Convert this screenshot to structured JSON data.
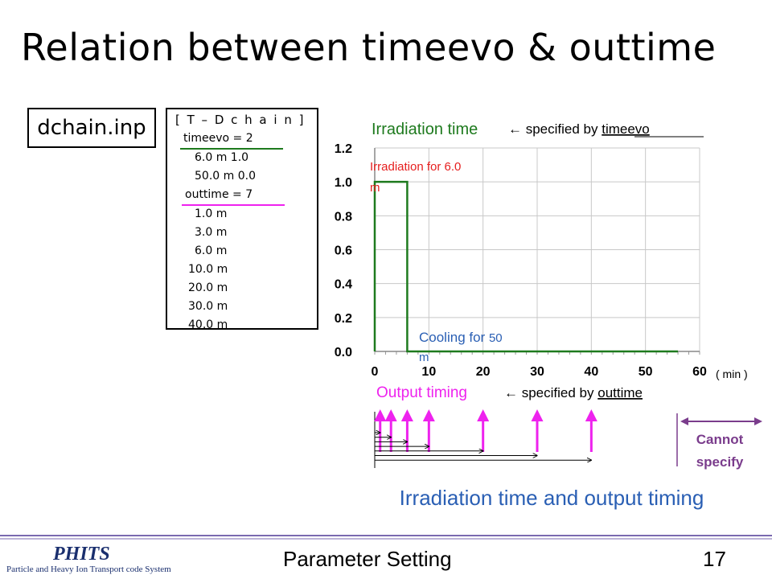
{
  "slide": {
    "title": "Relation between timeevo & outtime",
    "file_label": "dchain.inp",
    "footer_title": "Parameter Setting",
    "page_number": "17",
    "logo_main": "PHITS",
    "logo_sub": "Particle and Heavy Ion Transport code System"
  },
  "input_block": {
    "header": "[ T – D c h a i n ]",
    "lines": [
      "timeevo =    2",
      "6.0 m  1.0",
      "50.0 m 0.0",
      "outtime =    7",
      "1.0 m",
      "3.0 m",
      "6.0 m",
      "10.0 m",
      "20.0 m",
      "30.0 m",
      "40.0 m"
    ]
  },
  "annotations": {
    "irradiation_time": "Irradiation time",
    "specified_by_timeevo_prefix": "← specified by ",
    "timeevo_word": "timeevo",
    "irradiation_for": "Irradiation for 6.0",
    "irradiation_for_unit": "m",
    "cooling_for": "Cooling for ",
    "cooling_value": "50",
    "cooling_unit": "m",
    "min_unit": "( min )",
    "output_timing": "Output timing",
    "specified_by_outtime_prefix": "← specified by ",
    "outtime_word": "outtime",
    "cannot_specify_1": "Cannot",
    "cannot_specify_2": "specify",
    "caption": "Irradiation time and output timing"
  },
  "colors": {
    "green": "#1e7a1e",
    "magenta": "#ee22ee",
    "red": "#e61e1e",
    "blue": "#2a5fb4",
    "purple": "#7a3c8c",
    "footer_purple": "#7a6ab0"
  },
  "chart_data": {
    "type": "line",
    "x": [
      0,
      0,
      6,
      6,
      56
    ],
    "y": [
      0,
      1.0,
      1.0,
      0,
      0
    ],
    "xticks": [
      "0",
      "10",
      "20",
      "30",
      "40",
      "50",
      "60"
    ],
    "yticks": [
      "0.0",
      "0.2",
      "0.4",
      "0.6",
      "0.8",
      "1.0",
      "1.2"
    ],
    "xlim": [
      0,
      60
    ],
    "ylim": [
      0,
      1.2
    ],
    "grid": true,
    "output_times": [
      1,
      3,
      6,
      10,
      20,
      30,
      40
    ]
  }
}
